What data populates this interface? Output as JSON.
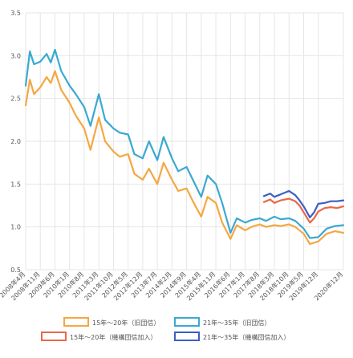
{
  "chart_data": {
    "type": "line",
    "title": "",
    "xlabel": "",
    "ylabel": "",
    "ylim": [
      0.5,
      3.5
    ],
    "yticks": [
      "0.5",
      "1.0",
      "1.5",
      "2.0",
      "2.5",
      "3.0",
      "3.5"
    ],
    "grid": true,
    "legend_position": "bottom",
    "x_start": "2008年4月",
    "x_end": "2020年12月",
    "x_tick_labels": [
      "2008年4月",
      "2008年11月",
      "2009年6月",
      "2010年1月",
      "2010年8月",
      "2011年3月",
      "2011年10月",
      "2012年5月",
      "2012年12月",
      "2013年7月",
      "2014年2月",
      "2014年9月",
      "2015年4月",
      "2015年11月",
      "2016年6月",
      "2017年1月",
      "2017年8月",
      "2018年3月",
      "2018年10月",
      "2019年5月",
      "2019年12月",
      "2020年12月"
    ],
    "series": [
      {
        "name": "15年～20年（旧団信）",
        "color": "#f5a742",
        "x": [
          "2008年4月",
          "2008年6月",
          "2008年8月",
          "2008年11月",
          "2009年2月",
          "2009年4月",
          "2009年6月",
          "2009年9月",
          "2010年1月",
          "2010年4月",
          "2010年8月",
          "2010年11月",
          "2011年3月",
          "2011年6月",
          "2011年10月",
          "2012年1月",
          "2012年5月",
          "2012年8月",
          "2012年12月",
          "2013年3月",
          "2013年7月",
          "2013年10月",
          "2014年2月",
          "2014年5月",
          "2014年9月",
          "2014年12月",
          "2015年4月",
          "2015年7月",
          "2015年11月",
          "2016年2月",
          "2016年6月",
          "2016年9月",
          "2017年1月",
          "2017年4月",
          "2017年8月",
          "2017年11月",
          "2018年3月",
          "2018年6月",
          "2018年10月",
          "2019年1月",
          "2019年5月",
          "2019年8月",
          "2019年12月",
          "2020年4月",
          "2020年8月",
          "2020年12月"
        ],
        "values": [
          2.42,
          2.72,
          2.55,
          2.63,
          2.75,
          2.68,
          2.82,
          2.6,
          2.45,
          2.3,
          2.15,
          1.9,
          2.28,
          2.0,
          1.88,
          1.82,
          1.85,
          1.62,
          1.55,
          1.68,
          1.5,
          1.75,
          1.55,
          1.42,
          1.45,
          1.3,
          1.12,
          1.35,
          1.28,
          1.05,
          0.86,
          1.02,
          0.96,
          1.0,
          1.03,
          1.0,
          1.02,
          1.01,
          1.03,
          1.0,
          0.92,
          0.8,
          0.83,
          0.92,
          0.95,
          0.93
        ]
      },
      {
        "name": "21年～35年（旧団信）",
        "color": "#3aa9d1",
        "x": [
          "2008年4月",
          "2008年6月",
          "2008年8月",
          "2008年11月",
          "2009年2月",
          "2009年4月",
          "2009年6月",
          "2009年9月",
          "2010年1月",
          "2010年4月",
          "2010年8月",
          "2010年11月",
          "2011年3月",
          "2011年6月",
          "2011年10月",
          "2012年1月",
          "2012年5月",
          "2012年8月",
          "2012年12月",
          "2013年3月",
          "2013年7月",
          "2013年10月",
          "2014年2月",
          "2014年5月",
          "2014年9月",
          "2014年12月",
          "2015年4月",
          "2015年7月",
          "2015年11月",
          "2016年2月",
          "2016年6月",
          "2016年9月",
          "2017年1月",
          "2017年4月",
          "2017年8月",
          "2017年11月",
          "2018年3月",
          "2018年6月",
          "2018年10月",
          "2019年1月",
          "2019年5月",
          "2019年8月",
          "2019年12月",
          "2020年4月",
          "2020年8月",
          "2020年12月"
        ],
        "values": [
          2.65,
          3.05,
          2.9,
          2.93,
          3.02,
          2.92,
          3.07,
          2.82,
          2.65,
          2.55,
          2.4,
          2.18,
          2.55,
          2.25,
          2.15,
          2.1,
          2.08,
          1.85,
          1.8,
          2.0,
          1.78,
          2.05,
          1.8,
          1.65,
          1.7,
          1.55,
          1.35,
          1.6,
          1.5,
          1.28,
          0.93,
          1.1,
          1.05,
          1.08,
          1.1,
          1.07,
          1.12,
          1.09,
          1.1,
          1.07,
          0.98,
          0.87,
          0.88,
          0.98,
          1.01,
          1.02
        ]
      },
      {
        "name": "15年～20年（機構団信加入）",
        "color": "#e8684a",
        "x": [
          "2017年10月",
          "2018年1月",
          "2018年3月",
          "2018年6月",
          "2018年10月",
          "2019年1月",
          "2019年3月",
          "2019年5月",
          "2019年8月",
          "2019年10月",
          "2019年12月",
          "2020年3月",
          "2020年6月",
          "2020年9月",
          "2020年12月"
        ],
        "values": [
          1.29,
          1.32,
          1.28,
          1.31,
          1.33,
          1.3,
          1.25,
          1.17,
          1.05,
          1.1,
          1.18,
          1.22,
          1.23,
          1.22,
          1.24
        ]
      },
      {
        "name": "21年～35年（機構団信加入）",
        "color": "#3b5fc4",
        "x": [
          "2017年10月",
          "2018年1月",
          "2018年3月",
          "2018年6月",
          "2018年10月",
          "2019年1月",
          "2019年3月",
          "2019年5月",
          "2019年8月",
          "2019年10月",
          "2019年12月",
          "2020年3月",
          "2020年6月",
          "2020年9月",
          "2020年12月"
        ],
        "values": [
          1.36,
          1.39,
          1.35,
          1.38,
          1.42,
          1.37,
          1.31,
          1.24,
          1.11,
          1.17,
          1.27,
          1.28,
          1.3,
          1.3,
          1.31
        ]
      }
    ]
  }
}
